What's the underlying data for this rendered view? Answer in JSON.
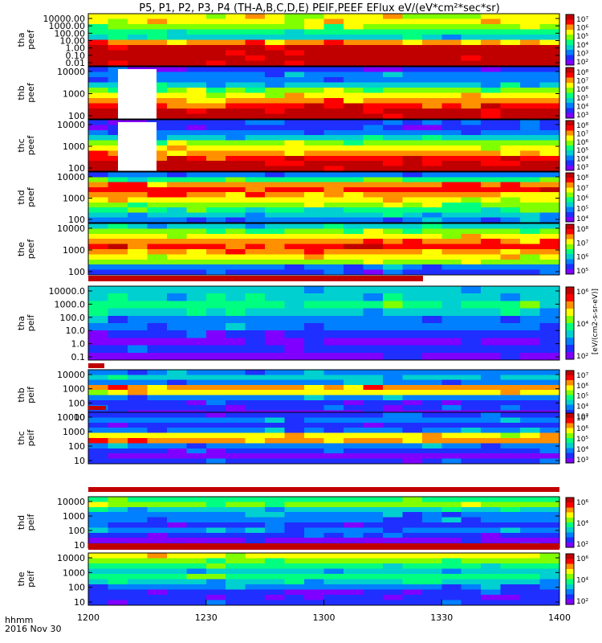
{
  "chart_data": {
    "type": "heatmap",
    "title": "P5, P1, P2, P3, P4 (TH-A,B,C,D,E) PEIF,PEEF EFlux eV/(eV*cm²*sec*sr)",
    "x_tick_labels": [
      "1200",
      "1230",
      "1300",
      "1330",
      "1400"
    ],
    "x_range": [
      "12:00",
      "14:00"
    ],
    "x_footer": [
      "hhmm",
      "2016 Nov 30"
    ],
    "colorbar_units": "[eV/(cm2-s-sr-eV)]",
    "panels": [
      {
        "name": "tha peef",
        "ylabel": [
          "tha",
          "peef"
        ],
        "yticks": [
          "10000.00",
          "1000.00",
          "100.00",
          "10.00",
          "1.00",
          "0.10",
          "0.01"
        ],
        "log_scale": true,
        "colorbar_ticks": [
          "10⁷",
          "10⁶",
          "10⁵",
          "10⁴",
          "10³",
          "10²"
        ]
      },
      {
        "name": "thb peef",
        "ylabel": [
          "thb",
          "peef"
        ],
        "yticks": [
          "10000",
          "1000",
          "100"
        ],
        "log_scale": true,
        "colorbar_ticks": [
          "10⁸",
          "10⁷",
          "10⁶",
          "10⁵",
          "10⁴",
          "10³"
        ]
      },
      {
        "name": "thc peef",
        "ylabel": [
          "thc",
          "peef"
        ],
        "yticks": [
          "10000",
          "1000",
          "100"
        ],
        "log_scale": true,
        "colorbar_ticks": [
          "10⁸",
          "10⁷",
          "10⁶",
          "10⁵",
          "10⁴",
          "10³"
        ]
      },
      {
        "name": "thd peef",
        "ylabel": [
          "thd",
          "peef"
        ],
        "yticks": [
          "10000",
          "1000",
          "100"
        ],
        "log_scale": true,
        "colorbar_ticks": [
          "10⁸",
          "10⁷",
          "10⁶",
          "10⁵",
          "10⁴"
        ]
      },
      {
        "name": "the peef",
        "ylabel": [
          "the",
          "peef"
        ],
        "yticks": [
          "10000",
          "1000",
          "100"
        ],
        "log_scale": true,
        "colorbar_ticks": [
          "10⁸",
          "10⁷",
          "10⁶",
          "10⁵"
        ]
      },
      {
        "name": "tha peif",
        "ylabel": [
          "tha",
          "peif"
        ],
        "yticks": [
          "10000.0",
          "1000.0",
          "100.0",
          "10.0",
          "1.0",
          "0.1"
        ],
        "log_scale": true,
        "colorbar_ticks": [
          "10⁶",
          "10⁴",
          "10²"
        ]
      },
      {
        "name": "thb peif",
        "ylabel": [
          "thb",
          "peif"
        ],
        "yticks": [
          "10000",
          "1000",
          "100",
          "10"
        ],
        "log_scale": true,
        "colorbar_ticks": [
          "10⁷",
          "10⁶",
          "10⁵",
          "10⁴",
          "10³"
        ]
      },
      {
        "name": "thc peif",
        "ylabel": [
          "thc",
          "peif"
        ],
        "yticks": [
          "10000",
          "1000",
          "100",
          "10"
        ],
        "log_scale": true,
        "colorbar_ticks": [
          "10⁷",
          "10⁶",
          "10⁵",
          "10⁴",
          "10³"
        ]
      },
      {
        "name": "thd peif",
        "ylabel": [
          "thd",
          "peif"
        ],
        "yticks": [
          "10000",
          "1000",
          "100",
          "10"
        ],
        "log_scale": true,
        "colorbar_ticks": [
          "10⁶",
          "10⁴",
          "10²"
        ]
      },
      {
        "name": "the peif",
        "ylabel": [
          "the",
          "peif"
        ],
        "yticks": [
          "10000",
          "1000",
          "100",
          "10"
        ],
        "log_scale": true,
        "colorbar_ticks": [
          "10⁶",
          "10⁴",
          "10²"
        ]
      }
    ],
    "colorbar_palette": [
      "#7f00ff",
      "#1f2fff",
      "#007fff",
      "#00d0d0",
      "#00ff80",
      "#80ff00",
      "#ffff00",
      "#ff9000",
      "#ff0000",
      "#c00000"
    ]
  }
}
